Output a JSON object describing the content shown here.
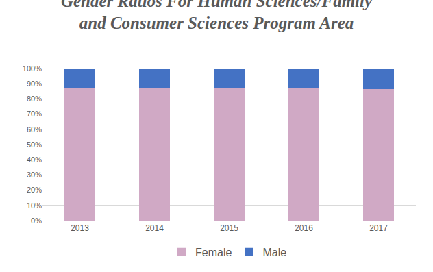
{
  "chart_data": {
    "type": "bar",
    "title": "Gender Ratios For Human Sciences/Family and Consumer Sciences Program Area",
    "categories": [
      "2013",
      "2014",
      "2015",
      "2016",
      "2017"
    ],
    "series": [
      {
        "name": "Female",
        "color": "#d0a9c5",
        "values": [
          87.5,
          87.5,
          87.5,
          87,
          86.5
        ]
      },
      {
        "name": "Male",
        "color": "#4472c4",
        "values": [
          12.5,
          12.5,
          12.5,
          13,
          13.5
        ]
      }
    ],
    "stacked": true,
    "ylim": [
      0,
      100
    ],
    "yticks": [
      {
        "value": 0,
        "label": "0%"
      },
      {
        "value": 10,
        "label": "10%"
      },
      {
        "value": 20,
        "label": "20%"
      },
      {
        "value": 30,
        "label": "30%"
      },
      {
        "value": 40,
        "label": "40%"
      },
      {
        "value": 50,
        "label": "50%"
      },
      {
        "value": 60,
        "label": "60%"
      },
      {
        "value": 70,
        "label": "70%"
      },
      {
        "value": 80,
        "label": "80%"
      },
      {
        "value": 90,
        "label": "90%"
      },
      {
        "value": 100,
        "label": "100%"
      }
    ],
    "grid": true,
    "legend": "bottom"
  }
}
